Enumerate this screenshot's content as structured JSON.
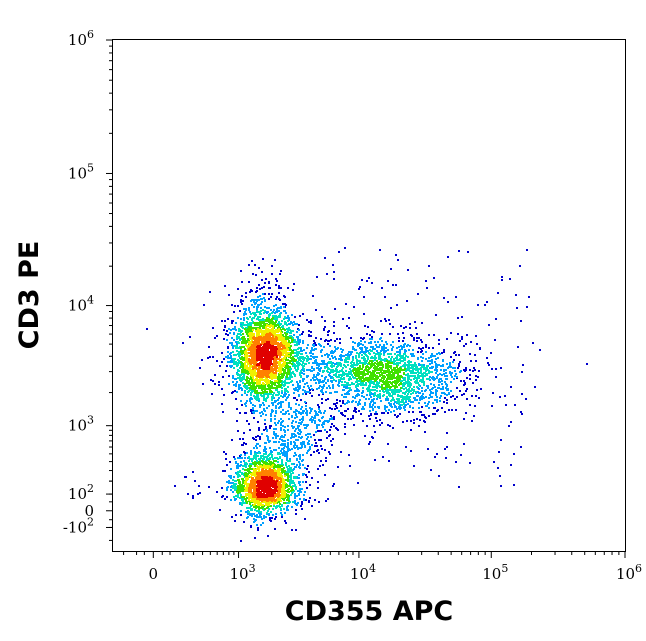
{
  "chart_data": {
    "type": "scatter",
    "subtype": "flow-cytometry-density-dot-plot",
    "title": "",
    "xlabel": "CD355 APC",
    "ylabel": "CD3 PE",
    "x_scale": "biexponential",
    "y_scale": "biexponential",
    "xlim": [
      -300,
      1000000
    ],
    "ylim": [
      -300,
      1000000
    ],
    "grid": false,
    "legend": "none",
    "density_colormap": [
      "#0000cc",
      "#00a0ff",
      "#00e0c0",
      "#40e000",
      "#f0f000",
      "#ff8000",
      "#e00000"
    ],
    "x_ticks": [
      {
        "value": 0,
        "base": "0",
        "exp": ""
      },
      {
        "value": 1000,
        "base": "10",
        "exp": "3"
      },
      {
        "value": 10000,
        "base": "10",
        "exp": "4"
      },
      {
        "value": 100000,
        "base": "10",
        "exp": "5"
      },
      {
        "value": 1000000,
        "base": "10",
        "exp": "6"
      }
    ],
    "y_ticks": [
      {
        "value": -100,
        "base": "-10",
        "exp": "2"
      },
      {
        "value": 0,
        "base": "0",
        "exp": ""
      },
      {
        "value": 100,
        "base": "10",
        "exp": "2"
      },
      {
        "value": 1000,
        "base": "10",
        "exp": "3"
      },
      {
        "value": 10000,
        "base": "10",
        "exp": "4"
      },
      {
        "value": 100000,
        "base": "10",
        "exp": "5"
      },
      {
        "value": 1000000,
        "base": "10",
        "exp": "6"
      }
    ],
    "populations": [
      {
        "name": "",
        "center_x": 1700,
        "center_y": 4200,
        "count": 2600,
        "density": "high"
      },
      {
        "name": "",
        "center_x": 1700,
        "center_y": 160,
        "count": 1700,
        "density": "high"
      },
      {
        "name": "",
        "center_x": 17000,
        "center_y": 2700,
        "count": 1500,
        "density": "medium"
      }
    ]
  }
}
